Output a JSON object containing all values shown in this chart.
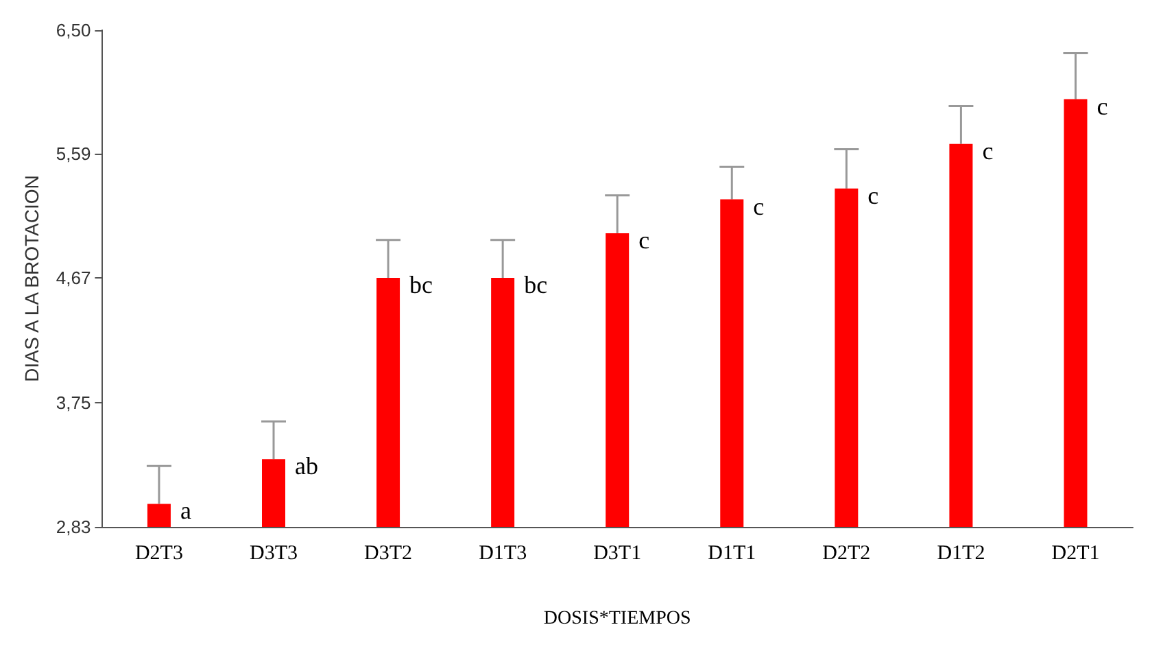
{
  "chart_data": {
    "type": "bar",
    "xlabel": "DOSIS*TIEMPOS",
    "ylabel": "DIAS A LA BROTACION",
    "categories": [
      "D2T3",
      "D3T3",
      "D3T2",
      "D1T3",
      "D3T1",
      "D1T1",
      "D2T2",
      "D1T2",
      "D2T1"
    ],
    "values": [
      3.0,
      3.33,
      4.67,
      4.67,
      5.0,
      5.25,
      5.33,
      5.66,
      5.99
    ],
    "errors": [
      [
        3.0,
        3.28
      ],
      [
        3.33,
        3.61
      ],
      [
        4.67,
        4.95
      ],
      [
        4.67,
        4.95
      ],
      [
        5.0,
        5.28
      ],
      [
        5.25,
        5.49
      ],
      [
        5.33,
        5.62
      ],
      [
        5.66,
        5.94
      ],
      [
        5.99,
        6.33
      ]
    ],
    "value_labels": [
      "a",
      "ab",
      "bc",
      "bc",
      "c",
      "c",
      "c",
      "c",
      "c"
    ],
    "color": "#ff0000",
    "ylim": [
      2.83,
      6.5
    ],
    "yticks": [
      {
        "value": 2.83,
        "label": "2,83"
      },
      {
        "value": 3.75,
        "label": "3,75"
      },
      {
        "value": 4.67,
        "label": "4,67"
      },
      {
        "value": 5.59,
        "label": "5,59"
      },
      {
        "value": 6.5,
        "label": "6,50"
      }
    ],
    "grid": false
  }
}
